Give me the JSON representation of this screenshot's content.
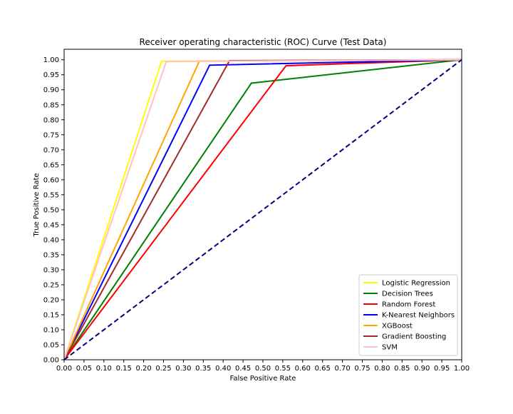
{
  "chart_data": {
    "type": "line",
    "title": "Receiver operating characteristic (ROC) Curve (Test Data)",
    "xlabel": "False Positive Rate",
    "ylabel": "True Positive Rate",
    "xlim": [
      0,
      1
    ],
    "ylim": [
      0,
      1.035
    ],
    "x_ticks": [
      "0.00",
      "0.05",
      "0.10",
      "0.15",
      "0.20",
      "0.25",
      "0.30",
      "0.35",
      "0.40",
      "0.45",
      "0.50",
      "0.55",
      "0.60",
      "0.65",
      "0.70",
      "0.75",
      "0.80",
      "0.85",
      "0.90",
      "0.95",
      "1.00"
    ],
    "y_ticks": [
      "0.00",
      "0.05",
      "0.10",
      "0.15",
      "0.20",
      "0.25",
      "0.30",
      "0.35",
      "0.40",
      "0.45",
      "0.50",
      "0.55",
      "0.60",
      "0.65",
      "0.70",
      "0.75",
      "0.80",
      "0.85",
      "0.90",
      "0.95",
      "1.00"
    ],
    "grid": false,
    "legend_position": "lower-right",
    "series": [
      {
        "name": "Logistic Regression",
        "color": "#ffff00",
        "x": [
          0,
          0.245,
          1
        ],
        "y": [
          0,
          0.995,
          1
        ]
      },
      {
        "name": "Decision Trees",
        "color": "#008000",
        "x": [
          0,
          0.471,
          1
        ],
        "y": [
          0,
          0.922,
          1
        ]
      },
      {
        "name": "Random Forest",
        "color": "#ff0000",
        "x": [
          0,
          0.558,
          1
        ],
        "y": [
          0,
          0.98,
          1
        ]
      },
      {
        "name": "K-Nearest Neighbors",
        "color": "#0000ff",
        "x": [
          0,
          0.366,
          1
        ],
        "y": [
          0,
          0.982,
          1
        ]
      },
      {
        "name": "XGBoost",
        "color": "#ffa500",
        "x": [
          0,
          0.34,
          1
        ],
        "y": [
          0,
          0.995,
          1
        ]
      },
      {
        "name": "Gradient Boosting",
        "color": "#a52a2a",
        "x": [
          0,
          0.416,
          1
        ],
        "y": [
          0,
          0.997,
          1
        ]
      },
      {
        "name": "SVM",
        "color": "#ffc0cb",
        "x": [
          0,
          0.257,
          1
        ],
        "y": [
          0,
          0.994,
          1
        ]
      }
    ],
    "reference_line": {
      "color": "#000080",
      "style": "dashed",
      "x": [
        0,
        1
      ],
      "y": [
        0,
        1
      ]
    }
  }
}
